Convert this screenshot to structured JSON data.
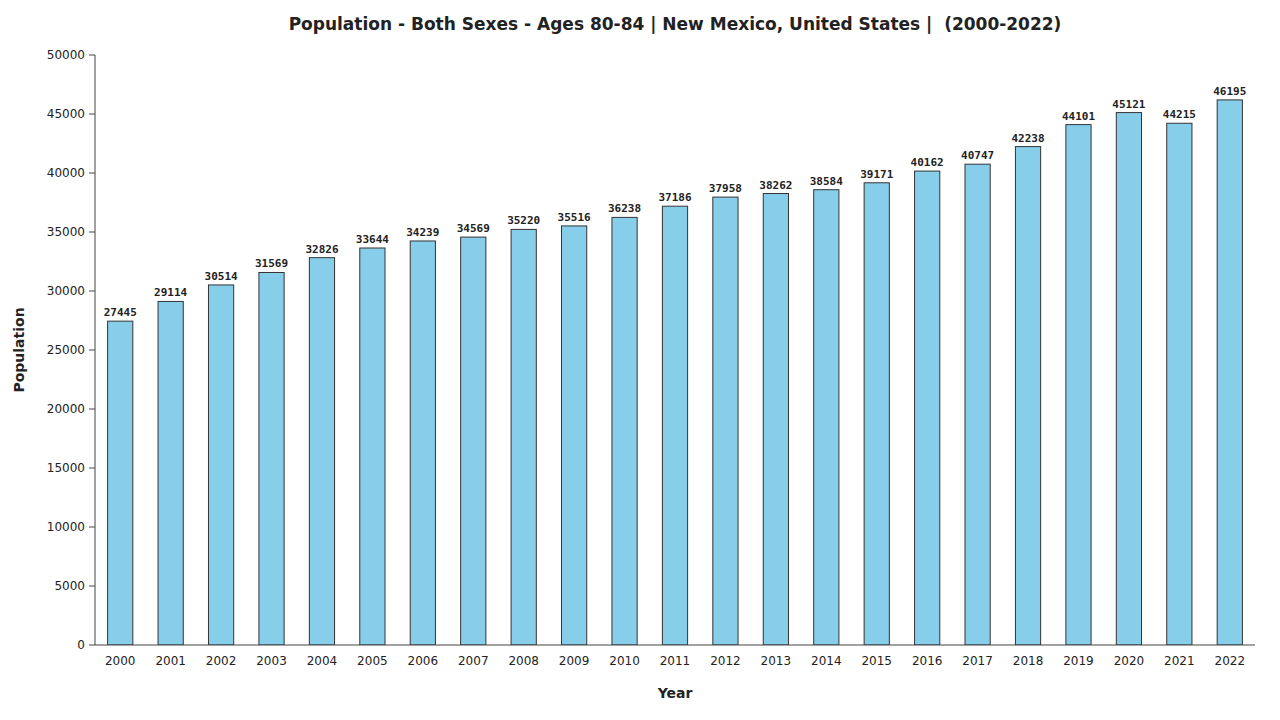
{
  "chart_data": {
    "type": "bar",
    "title": "Population - Both Sexes - Ages 80-84 | New Mexico, United States |  (2000-2022)",
    "x_label": "Year",
    "y_label": "Population",
    "categories": [
      "2000",
      "2001",
      "2002",
      "2003",
      "2004",
      "2005",
      "2006",
      "2007",
      "2008",
      "2009",
      "2010",
      "2011",
      "2012",
      "2013",
      "2014",
      "2015",
      "2016",
      "2017",
      "2018",
      "2019",
      "2020",
      "2021",
      "2022"
    ],
    "values": [
      27445,
      29114,
      30514,
      31569,
      32826,
      33644,
      34239,
      34569,
      35220,
      35516,
      36238,
      37186,
      37958,
      38262,
      38584,
      39171,
      40162,
      40747,
      42238,
      44101,
      45121,
      44215,
      46195
    ],
    "color": "#87CEEB",
    "ylim": [
      0,
      50000
    ],
    "yticks": [
      0,
      5000,
      10000,
      15000,
      20000,
      25000,
      30000,
      35000,
      40000,
      45000,
      50000
    ],
    "grid": false,
    "data_labels": true
  }
}
